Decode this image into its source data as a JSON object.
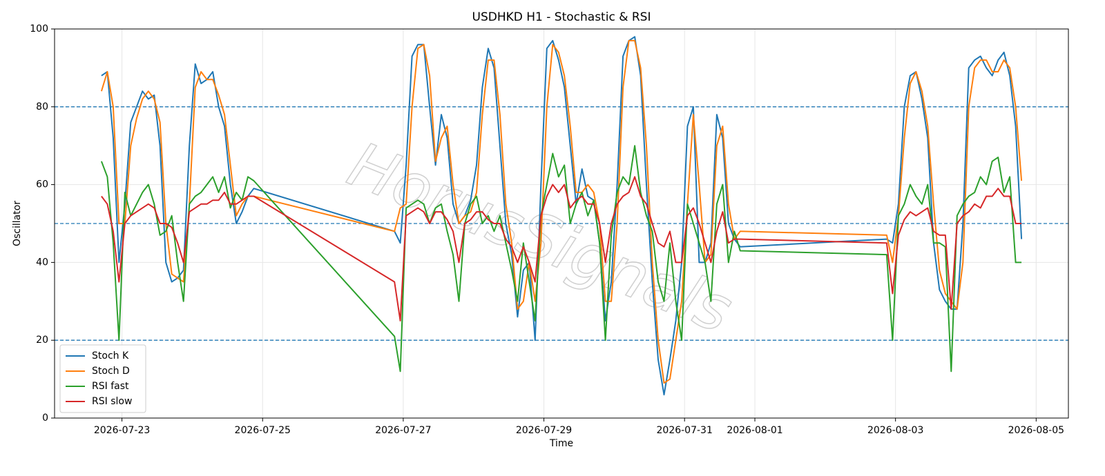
{
  "chart_data": {
    "type": "line",
    "title": "USDHKD H1 - Stochastic & RSI",
    "xlabel": "Time",
    "ylabel": "Oscillator",
    "watermark": "HorusSignals",
    "x": [
      "2026-07-22T17:00",
      "2026-07-22T19:00",
      "2026-07-22T21:00",
      "2026-07-22T23:00",
      "2026-07-23T01:00",
      "2026-07-23T03:00",
      "2026-07-23T05:00",
      "2026-07-23T07:00",
      "2026-07-23T09:00",
      "2026-07-23T11:00",
      "2026-07-23T13:00",
      "2026-07-23T15:00",
      "2026-07-23T17:00",
      "2026-07-23T19:00",
      "2026-07-23T21:00",
      "2026-07-23T23:00",
      "2026-07-24T01:00",
      "2026-07-24T03:00",
      "2026-07-24T05:00",
      "2026-07-24T07:00",
      "2026-07-24T09:00",
      "2026-07-24T11:00",
      "2026-07-24T13:00",
      "2026-07-24T15:00",
      "2026-07-24T17:00",
      "2026-07-24T19:00",
      "2026-07-24T21:00",
      "2026-07-26T21:00",
      "2026-07-26T23:00",
      "2026-07-27T01:00",
      "2026-07-27T03:00",
      "2026-07-27T05:00",
      "2026-07-27T07:00",
      "2026-07-27T09:00",
      "2026-07-27T11:00",
      "2026-07-27T13:00",
      "2026-07-27T15:00",
      "2026-07-27T17:00",
      "2026-07-27T19:00",
      "2026-07-27T21:00",
      "2026-07-27T23:00",
      "2026-07-28T01:00",
      "2026-07-28T03:00",
      "2026-07-28T05:00",
      "2026-07-28T07:00",
      "2026-07-28T09:00",
      "2026-07-28T11:00",
      "2026-07-28T13:00",
      "2026-07-28T15:00",
      "2026-07-28T17:00",
      "2026-07-28T19:00",
      "2026-07-28T21:00",
      "2026-07-28T23:00",
      "2026-07-29T01:00",
      "2026-07-29T03:00",
      "2026-07-29T05:00",
      "2026-07-29T07:00",
      "2026-07-29T09:00",
      "2026-07-29T11:00",
      "2026-07-29T13:00",
      "2026-07-29T15:00",
      "2026-07-29T17:00",
      "2026-07-29T19:00",
      "2026-07-29T21:00",
      "2026-07-29T23:00",
      "2026-07-30T01:00",
      "2026-07-30T03:00",
      "2026-07-30T05:00",
      "2026-07-30T07:00",
      "2026-07-30T09:00",
      "2026-07-30T11:00",
      "2026-07-30T13:00",
      "2026-07-30T15:00",
      "2026-07-30T17:00",
      "2026-07-30T19:00",
      "2026-07-30T21:00",
      "2026-07-30T23:00",
      "2026-07-31T01:00",
      "2026-07-31T03:00",
      "2026-07-31T05:00",
      "2026-07-31T07:00",
      "2026-07-31T09:00",
      "2026-07-31T11:00",
      "2026-07-31T13:00",
      "2026-07-31T15:00",
      "2026-07-31T17:00",
      "2026-07-31T19:00",
      "2026-08-02T21:00",
      "2026-08-02T23:00",
      "2026-08-03T01:00",
      "2026-08-03T03:00",
      "2026-08-03T05:00",
      "2026-08-03T07:00",
      "2026-08-03T09:00",
      "2026-08-03T11:00",
      "2026-08-03T13:00",
      "2026-08-03T15:00",
      "2026-08-03T17:00",
      "2026-08-03T19:00",
      "2026-08-03T21:00",
      "2026-08-03T23:00",
      "2026-08-04T01:00",
      "2026-08-04T03:00",
      "2026-08-04T05:00",
      "2026-08-04T07:00",
      "2026-08-04T09:00",
      "2026-08-04T11:00",
      "2026-08-04T13:00",
      "2026-08-04T15:00",
      "2026-08-04T17:00",
      "2026-08-04T19:00"
    ],
    "series": [
      {
        "name": "Stoch K",
        "color": "#1f77b4",
        "values": [
          88,
          89,
          72,
          40,
          55,
          76,
          80,
          84,
          82,
          83,
          70,
          40,
          35,
          36,
          38,
          70,
          91,
          86,
          87,
          89,
          80,
          75,
          60,
          50,
          53,
          57,
          59,
          48,
          45,
          65,
          93,
          96,
          96,
          80,
          65,
          78,
          72,
          55,
          50,
          52,
          56,
          65,
          85,
          95,
          90,
          70,
          50,
          42,
          26,
          38,
          40,
          20,
          60,
          95,
          97,
          92,
          85,
          70,
          55,
          64,
          57,
          56,
          45,
          25,
          35,
          60,
          93,
          97,
          98,
          88,
          60,
          35,
          15,
          6,
          15,
          25,
          40,
          75,
          80,
          40,
          40,
          45,
          78,
          72,
          50,
          46,
          44,
          46,
          45,
          55,
          80,
          88,
          89,
          82,
          72,
          45,
          33,
          30,
          28,
          28,
          50,
          90,
          92,
          93,
          90,
          88,
          92,
          94,
          88,
          75,
          46
        ]
      },
      {
        "name": "Stoch D",
        "color": "#ff7f0e",
        "values": [
          84,
          89,
          80,
          50,
          50,
          70,
          77,
          82,
          84,
          82,
          76,
          50,
          37,
          36,
          35,
          55,
          85,
          89,
          87,
          87,
          83,
          78,
          65,
          52,
          55,
          57,
          57,
          48,
          54,
          55,
          80,
          95,
          96,
          88,
          66,
          72,
          75,
          60,
          50,
          52,
          53,
          58,
          78,
          92,
          92,
          78,
          55,
          45,
          28,
          30,
          40,
          30,
          45,
          80,
          96,
          94,
          88,
          75,
          58,
          58,
          60,
          58,
          50,
          30,
          30,
          50,
          85,
          97,
          97,
          90,
          70,
          40,
          20,
          9,
          10,
          20,
          30,
          55,
          78,
          60,
          40,
          42,
          70,
          75,
          55,
          46,
          48,
          47,
          40,
          52,
          72,
          86,
          89,
          84,
          75,
          55,
          38,
          32,
          30,
          28,
          40,
          80,
          90,
          92,
          92,
          89,
          89,
          92,
          90,
          80,
          61
        ]
      },
      {
        "name": "RSI fast",
        "color": "#2ca02c",
        "values": [
          66,
          62,
          45,
          20,
          58,
          52,
          55,
          58,
          60,
          55,
          47,
          48,
          52,
          40,
          30,
          55,
          57,
          58,
          60,
          62,
          58,
          62,
          54,
          58,
          56,
          62,
          61,
          21,
          12,
          54,
          55,
          56,
          55,
          50,
          54,
          55,
          48,
          42,
          30,
          50,
          55,
          57,
          50,
          52,
          48,
          52,
          45,
          38,
          30,
          45,
          35,
          25,
          52,
          60,
          68,
          62,
          65,
          50,
          55,
          58,
          52,
          56,
          45,
          20,
          47,
          58,
          62,
          60,
          70,
          58,
          52,
          48,
          35,
          30,
          45,
          30,
          20,
          55,
          50,
          45,
          40,
          30,
          55,
          60,
          40,
          48,
          43,
          42,
          20,
          52,
          55,
          60,
          57,
          55,
          60,
          45,
          45,
          44,
          12,
          52,
          55,
          57,
          58,
          62,
          60,
          66,
          67,
          58,
          62,
          40,
          40
        ]
      },
      {
        "name": "RSI slow",
        "color": "#d62728",
        "values": [
          57,
          55,
          48,
          35,
          50,
          52,
          53,
          54,
          55,
          54,
          50,
          50,
          49,
          45,
          40,
          53,
          54,
          55,
          55,
          56,
          56,
          58,
          55,
          55,
          56,
          57,
          57,
          35,
          25,
          52,
          53,
          54,
          53,
          50,
          53,
          53,
          51,
          48,
          40,
          50,
          51,
          53,
          53,
          51,
          50,
          50,
          46,
          44,
          40,
          44,
          40,
          35,
          52,
          57,
          60,
          58,
          60,
          54,
          56,
          57,
          55,
          55,
          50,
          40,
          50,
          55,
          57,
          58,
          62,
          57,
          55,
          50,
          45,
          44,
          48,
          40,
          40,
          52,
          54,
          50,
          45,
          40,
          48,
          53,
          45,
          46,
          46,
          45,
          32,
          47,
          51,
          53,
          52,
          53,
          54,
          48,
          47,
          47,
          28,
          50,
          52,
          53,
          55,
          54,
          57,
          57,
          59,
          57,
          57,
          50,
          50
        ]
      }
    ],
    "reference_lines": {
      "values": [
        20,
        50,
        80
      ],
      "color": "#1f77b4"
    },
    "xlim": [
      "2026-07-22T01:00",
      "2026-08-05T11:00"
    ],
    "xticks": [
      {
        "value": "2026-07-23T00:00",
        "label": "2026-07-23"
      },
      {
        "value": "2026-07-25T00:00",
        "label": "2026-07-25"
      },
      {
        "value": "2026-07-27T00:00",
        "label": "2026-07-27"
      },
      {
        "value": "2026-07-29T00:00",
        "label": "2026-07-29"
      },
      {
        "value": "2026-07-31T00:00",
        "label": "2026-07-31"
      },
      {
        "value": "2026-08-01T00:00",
        "label": "2026-08-01"
      },
      {
        "value": "2026-08-03T00:00",
        "label": "2026-08-03"
      },
      {
        "value": "2026-08-05T00:00",
        "label": "2026-08-05"
      }
    ],
    "ylim": [
      0,
      100
    ],
    "yticks": [
      0,
      20,
      40,
      60,
      80,
      100
    ],
    "grid": true,
    "legend": "lower left"
  }
}
